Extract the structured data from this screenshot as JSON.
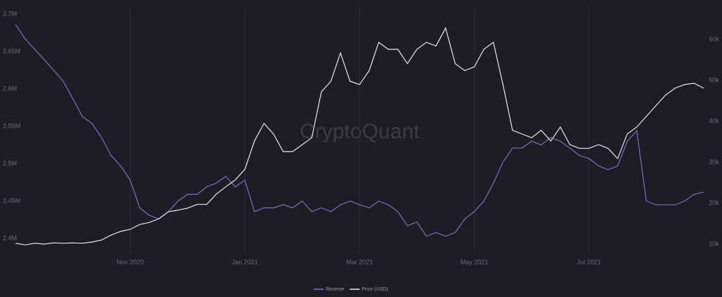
{
  "chart_data": {
    "type": "line",
    "watermark": "CryptoQuant",
    "categories": [
      null,
      null,
      null,
      null,
      null,
      null,
      null,
      null,
      null,
      null,
      null,
      null,
      "Nov 2020",
      null,
      null,
      null,
      null,
      null,
      null,
      null,
      null,
      null,
      null,
      null,
      "Jan 2021",
      null,
      null,
      null,
      null,
      null,
      null,
      null,
      null,
      null,
      null,
      null,
      "Mar 2021",
      null,
      null,
      null,
      null,
      null,
      null,
      null,
      null,
      null,
      null,
      null,
      "May 2021",
      null,
      null,
      null,
      null,
      null,
      null,
      null,
      null,
      null,
      null,
      null,
      "Jul 2021",
      null,
      null,
      null,
      null,
      null,
      null,
      null,
      null,
      null,
      null,
      null,
      null
    ],
    "series": [
      {
        "name": "Reserve",
        "color": "#7b6fc4",
        "axis": "y",
        "values": [
          2686000,
          2667000,
          2653000,
          2639000,
          2625000,
          2610000,
          2587000,
          2563000,
          2554000,
          2535000,
          2511000,
          2497000,
          2478000,
          2441000,
          2431000,
          2426000,
          2436000,
          2450000,
          2459000,
          2459000,
          2469000,
          2474000,
          2483000,
          2469000,
          2478000,
          2436000,
          2441000,
          2441000,
          2445000,
          2441000,
          2450000,
          2436000,
          2441000,
          2436000,
          2445000,
          2450000,
          2445000,
          2441000,
          2450000,
          2445000,
          2436000,
          2417000,
          2422000,
          2403000,
          2408000,
          2403000,
          2408000,
          2426000,
          2436000,
          2450000,
          2474000,
          2502000,
          2521000,
          2521000,
          2530000,
          2525000,
          2535000,
          2530000,
          2521000,
          2511000,
          2507000,
          2497000,
          2492000,
          2497000,
          2530000,
          2544000,
          2450000,
          2445000,
          2445000,
          2445000,
          2450000,
          2459000,
          2462000
        ]
      },
      {
        "name": "Price (USD)",
        "color": "#e8e8e8",
        "axis": "y2",
        "values": [
          10200,
          9800,
          10200,
          10000,
          10300,
          10200,
          10300,
          10200,
          10500,
          11000,
          12200,
          13100,
          13600,
          14800,
          15300,
          16200,
          17900,
          18300,
          18800,
          19700,
          19700,
          22200,
          24000,
          25700,
          28300,
          35200,
          39500,
          36900,
          32600,
          32600,
          34300,
          36000,
          47200,
          49800,
          56700,
          49800,
          49000,
          52400,
          59300,
          57600,
          57600,
          54100,
          57600,
          59300,
          58400,
          62800,
          54100,
          52400,
          53300,
          57600,
          59300,
          49000,
          37800,
          36900,
          36000,
          37800,
          35200,
          38600,
          34300,
          33400,
          33400,
          34300,
          33400,
          30900,
          36900,
          38600,
          41200,
          43800,
          46400,
          48100,
          49000,
          49300,
          48100
        ]
      }
    ],
    "ylim": [
      2384000,
      2700000
    ],
    "yticks": [
      {
        "value": 2400000,
        "label": "2.4M"
      },
      {
        "value": 2450000,
        "label": "2.45M"
      },
      {
        "value": 2500000,
        "label": "2.5M"
      },
      {
        "value": 2550000,
        "label": "2.55M"
      },
      {
        "value": 2600000,
        "label": "2.6M"
      },
      {
        "value": 2650000,
        "label": "2.65M"
      },
      {
        "value": 2700000,
        "label": "2.7M"
      }
    ],
    "y2lim": [
      8450,
      66200
    ],
    "y2ticks": [
      {
        "value": 10000,
        "label": "10k"
      },
      {
        "value": 20000,
        "label": "20k"
      },
      {
        "value": 30000,
        "label": "30k"
      },
      {
        "value": 40000,
        "label": "40k"
      },
      {
        "value": 50000,
        "label": "50k"
      },
      {
        "value": 60000,
        "label": "60k"
      }
    ],
    "grid": true,
    "legend": "bottom"
  }
}
